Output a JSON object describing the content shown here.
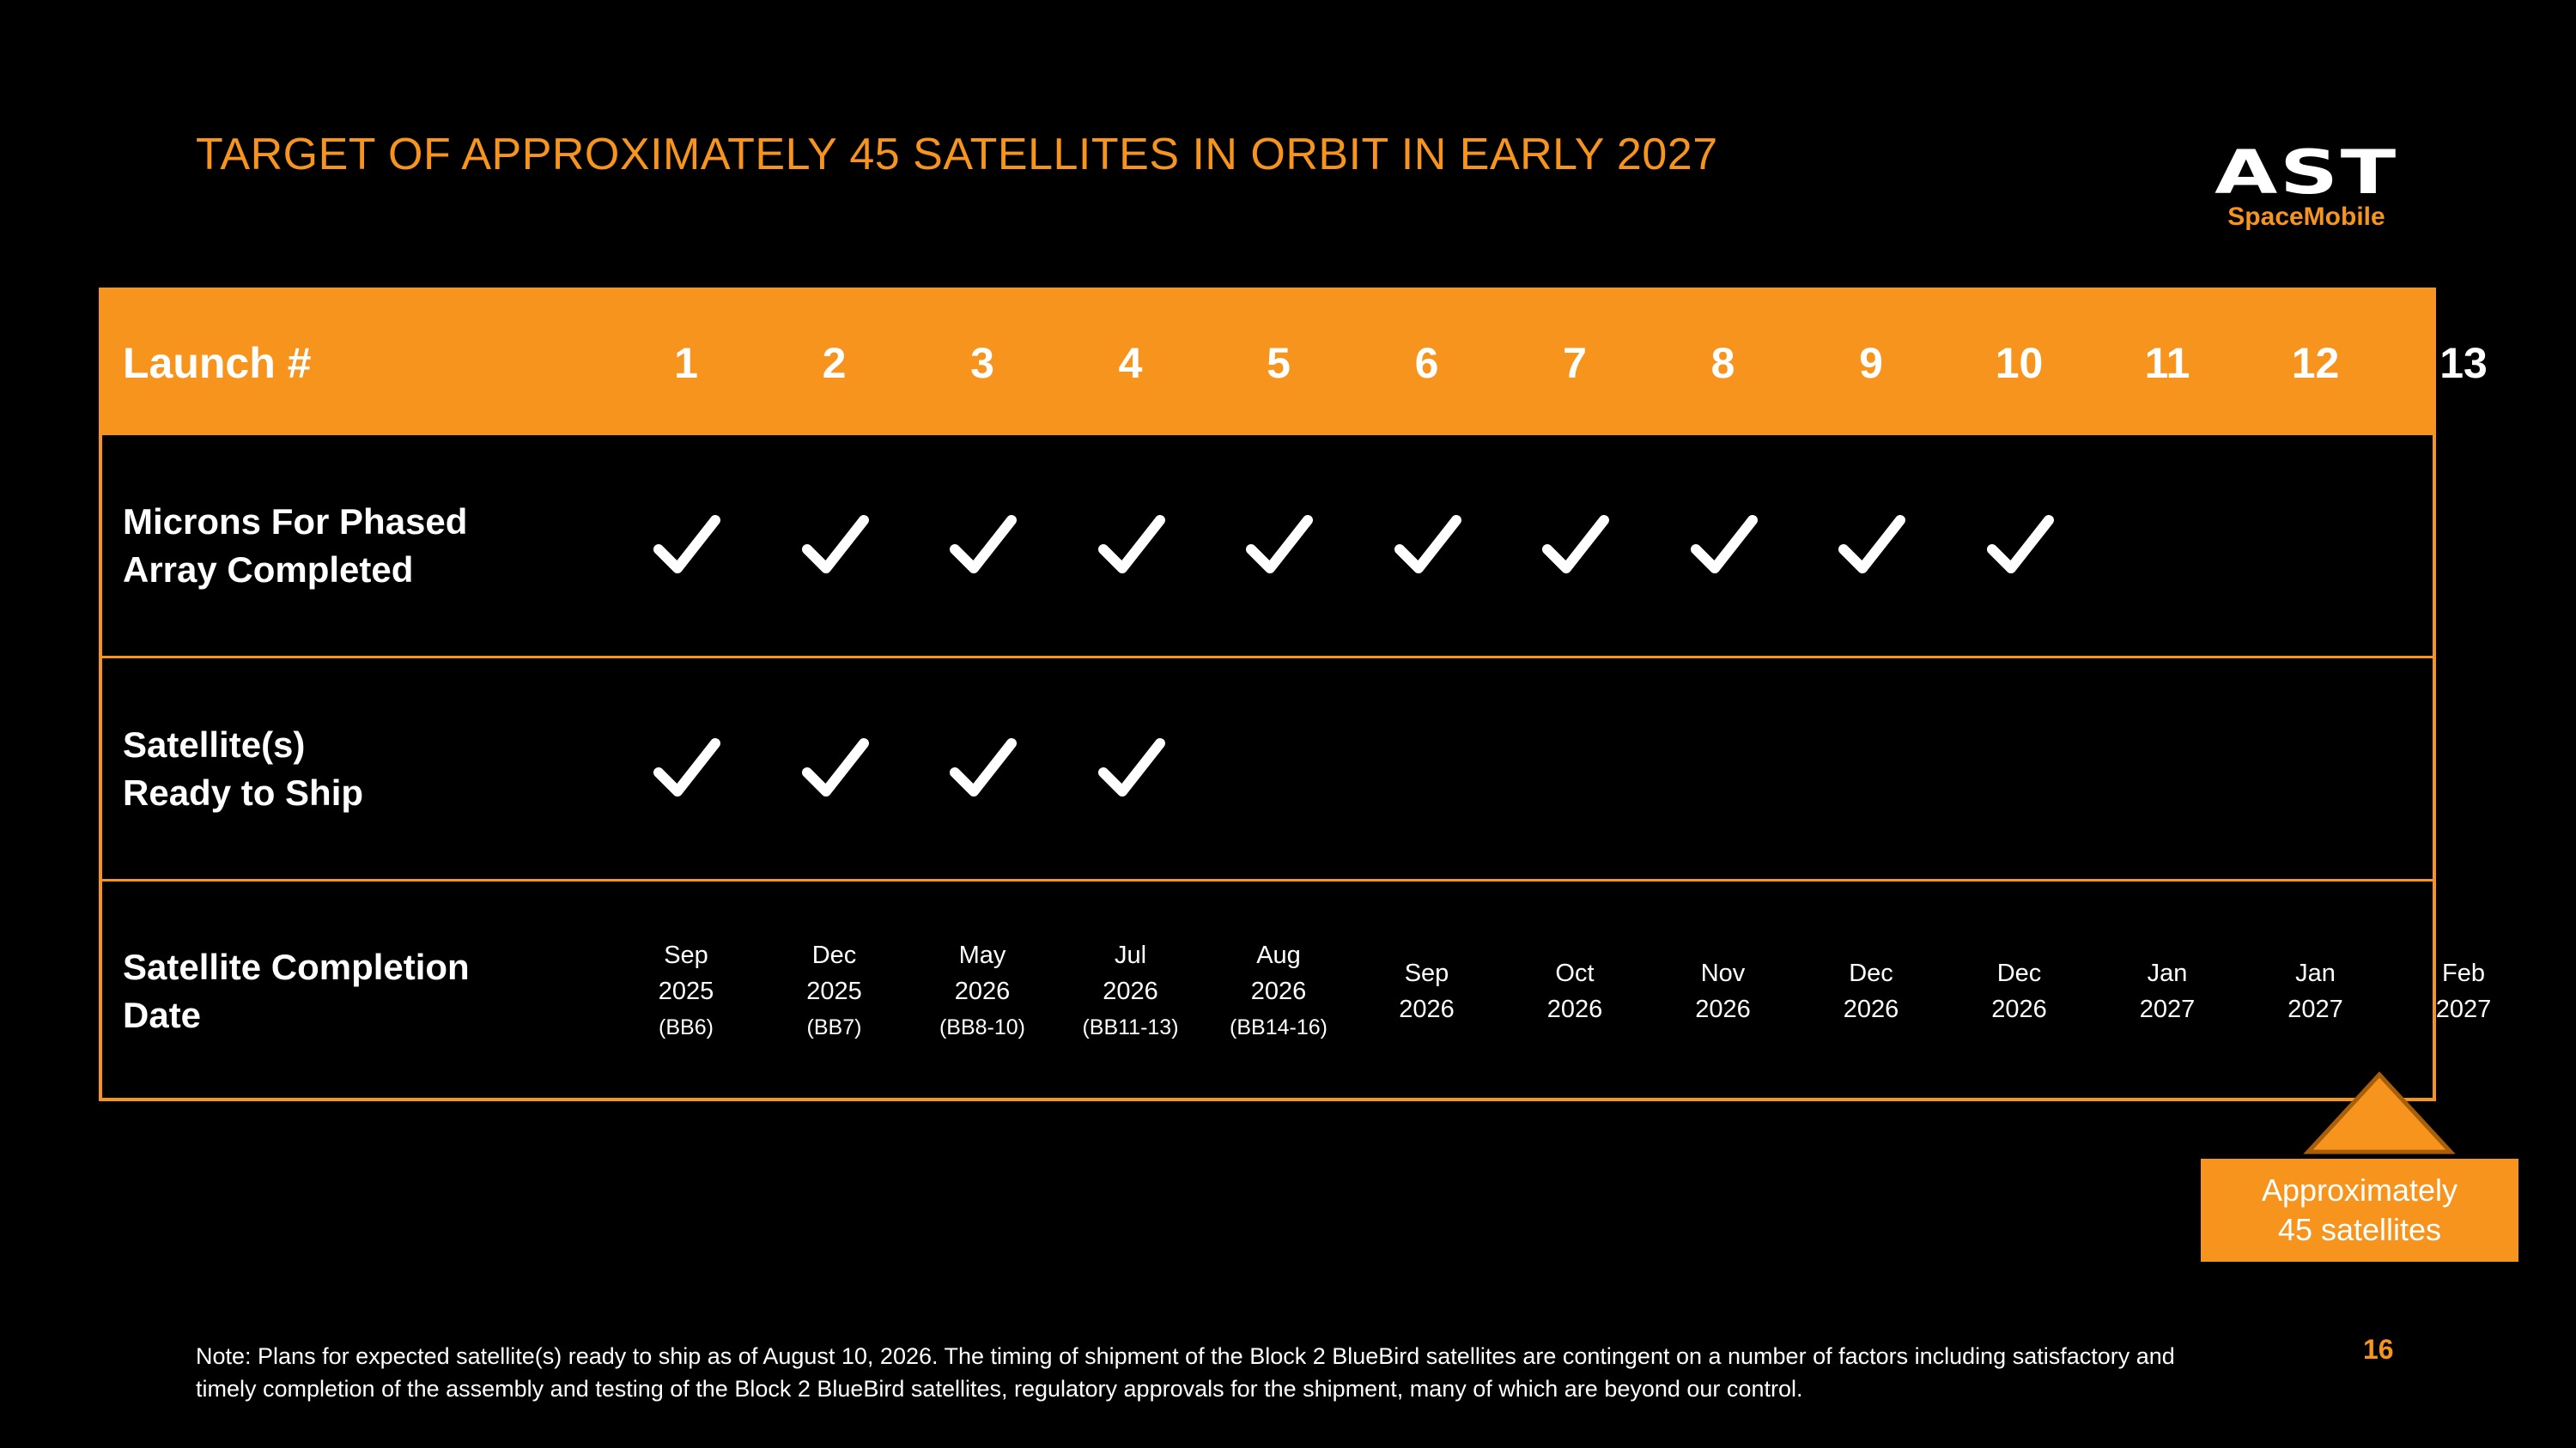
{
  "title": "TARGET OF APPROXIMATELY 45 SATELLITES IN ORBIT IN EARLY 2027",
  "logo": {
    "main": "AST",
    "sub": "SpaceMobile"
  },
  "table": {
    "header_label": "Launch #",
    "rows": [
      {
        "label_line1": "Microns For Phased",
        "label_line2": "Array Completed"
      },
      {
        "label_line1": "Satellite(s)",
        "label_line2": "Ready to Ship"
      },
      {
        "label_line1": "Satellite Completion",
        "label_line2": "Date"
      }
    ],
    "launches": [
      {
        "num": "1",
        "microns": true,
        "ready": true,
        "month": "Sep",
        "year": "2025",
        "code": "(BB6)"
      },
      {
        "num": "2",
        "microns": true,
        "ready": true,
        "month": "Dec",
        "year": "2025",
        "code": "(BB7)"
      },
      {
        "num": "3",
        "microns": true,
        "ready": true,
        "month": "May",
        "year": "2026",
        "code": "(BB8-10)"
      },
      {
        "num": "4",
        "microns": true,
        "ready": true,
        "month": "Jul",
        "year": "2026",
        "code": "(BB11-13)"
      },
      {
        "num": "5",
        "microns": true,
        "ready": false,
        "month": "Aug",
        "year": "2026",
        "code": "(BB14-16)"
      },
      {
        "num": "6",
        "microns": true,
        "ready": false,
        "month": "Sep",
        "year": "2026",
        "code": ""
      },
      {
        "num": "7",
        "microns": true,
        "ready": false,
        "month": "Oct",
        "year": "2026",
        "code": ""
      },
      {
        "num": "8",
        "microns": true,
        "ready": false,
        "month": "Nov",
        "year": "2026",
        "code": ""
      },
      {
        "num": "9",
        "microns": true,
        "ready": false,
        "month": "Dec",
        "year": "2026",
        "code": ""
      },
      {
        "num": "10",
        "microns": true,
        "ready": false,
        "month": "Dec",
        "year": "2026",
        "code": ""
      },
      {
        "num": "11",
        "microns": false,
        "ready": false,
        "month": "Jan",
        "year": "2027",
        "code": ""
      },
      {
        "num": "12",
        "microns": false,
        "ready": false,
        "month": "Jan",
        "year": "2027",
        "code": ""
      },
      {
        "num": "13",
        "microns": false,
        "ready": false,
        "month": "Feb",
        "year": "2027",
        "code": ""
      }
    ],
    "check_icon": "checkmark-icon"
  },
  "callout": {
    "line1": "Approximately",
    "line2": "45 satellites"
  },
  "note": "Note: Plans for expected satellite(s) ready to ship as of August 10, 2026. The timing of shipment of the Block 2 BlueBird satellites are contingent on a number of factors including satisfactory and timely completion of the assembly and testing of the Block 2 BlueBird satellites, regulatory approvals for the shipment, many of which are beyond our control.",
  "page_number": "16",
  "colors": {
    "accent": "#f7941d",
    "background": "#000000",
    "text": "#ffffff"
  }
}
